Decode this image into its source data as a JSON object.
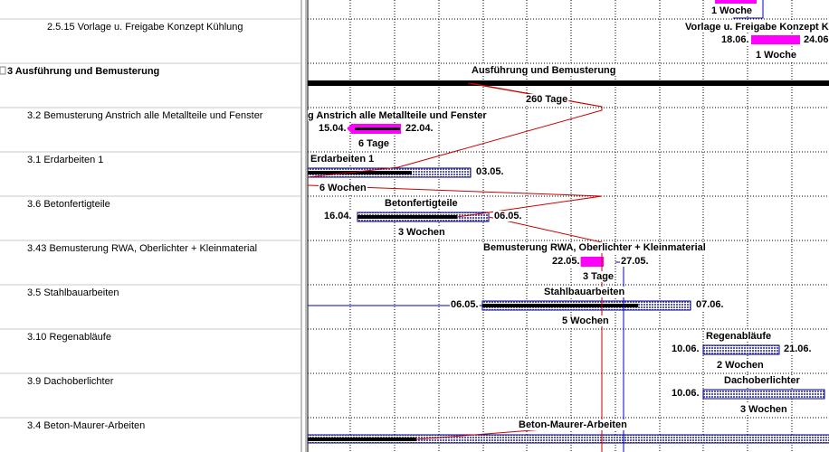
{
  "tasks": [
    {
      "bar_top": {
        "duration": "1 Woche"
      }
    },
    {
      "name": "2.5.15 Vorlage u. Freigabe Konzept Kühlung",
      "bar": {
        "label": "Vorlage u. Freigabe Konzept K",
        "start": "18.06.",
        "end": "24.06",
        "duration": "1 Woche"
      }
    },
    {
      "name": "3 Ausführung und Bemusterung",
      "bar": {
        "label": "Ausführung und Bemusterung",
        "duration": "260 Tage"
      }
    },
    {
      "name": "3.2 Bemusterung Anstrich  alle Metallteile und Fenster",
      "bar": {
        "label": "g Anstrich  alle Metallteile und Fenster",
        "start": "15.04.",
        "end": "22.04.",
        "duration": "6 Tage"
      }
    },
    {
      "name": "3.1 Erdarbeiten 1",
      "bar": {
        "label": "Erdarbeiten 1",
        "end": "03.05.",
        "duration": "6 Wochen"
      }
    },
    {
      "name": "3.6 Betonfertigteile",
      "bar": {
        "label": "Betonfertigteile",
        "start": "16.04.",
        "end": "06.05.",
        "duration": "3 Wochen"
      }
    },
    {
      "name": "3.43 Bemusterung RWA, Oberlichter + Kleinmaterial",
      "bar": {
        "label": "Bemusterung RWA, Oberlichter + Kleinmaterial",
        "start": "22.05.",
        "end": "27.05.",
        "duration": "3 Tage"
      }
    },
    {
      "name": "3.5 Stahlbauarbeiten",
      "bar": {
        "label": "Stahlbauarbeiten",
        "start": "06.05.",
        "end": "07.06.",
        "duration": "5 Wochen"
      }
    },
    {
      "name": "3.10 Regenabläufe",
      "bar": {
        "label": "Regenabläufe",
        "start": "10.06.",
        "end": "21.06.",
        "duration": "2 Wochen"
      }
    },
    {
      "name": "3.9 Dachoberlichter",
      "bar": {
        "label": "Dachoberlichter",
        "start": "10.06.",
        "duration": "3 Wochen"
      }
    },
    {
      "name": "3.4 Beton-Maurer-Arbeiten",
      "bar": {
        "label": "Beton-Maurer-Arbeiten"
      }
    }
  ]
}
